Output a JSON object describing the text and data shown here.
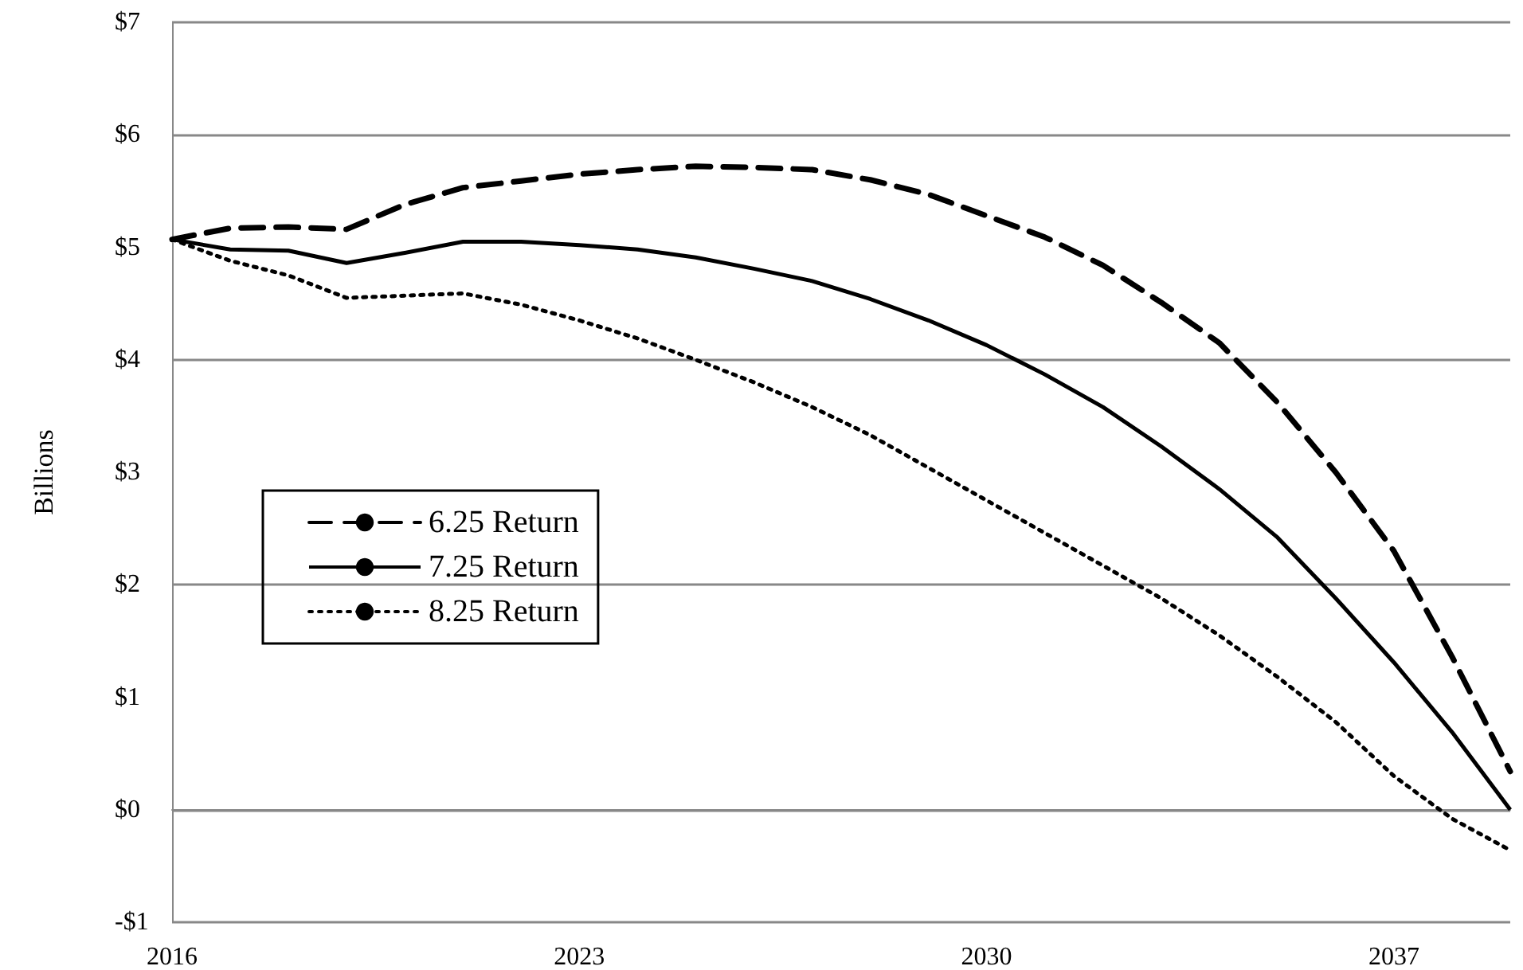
{
  "chart_data": {
    "type": "line",
    "ylabel": "Billions",
    "categories": [
      "2016",
      null,
      null,
      null,
      null,
      null,
      null,
      "2023",
      null,
      null,
      null,
      null,
      null,
      null,
      "2030",
      null,
      null,
      null,
      null,
      null,
      null,
      "2037",
      null,
      null
    ],
    "series": [
      {
        "name": "6.25 Return",
        "color": "#000000",
        "line_style": "dashed",
        "values": [
          5.07,
          5.17,
          5.18,
          5.16,
          5.38,
          5.53,
          5.59,
          5.65,
          5.69,
          5.72,
          5.71,
          5.69,
          5.6,
          5.47,
          5.28,
          5.09,
          4.84,
          4.51,
          4.15,
          3.62,
          3.0,
          2.3,
          1.36,
          0.34
        ]
      },
      {
        "name": "7.25 Return",
        "color": "#000000",
        "line_style": "solid",
        "values": [
          5.07,
          4.98,
          4.97,
          4.86,
          4.95,
          5.05,
          5.05,
          5.02,
          4.98,
          4.91,
          4.81,
          4.7,
          4.54,
          4.35,
          4.13,
          3.87,
          3.58,
          3.23,
          2.85,
          2.42,
          1.88,
          1.31,
          0.69,
          0.0
        ]
      },
      {
        "name": "8.25 Return",
        "color": "#000000",
        "line_style": "dotted",
        "values": [
          5.07,
          4.88,
          4.75,
          4.55,
          4.57,
          4.59,
          4.49,
          4.35,
          4.19,
          4.0,
          3.8,
          3.58,
          3.33,
          3.04,
          2.75,
          2.46,
          2.17,
          1.88,
          1.55,
          1.18,
          0.78,
          0.3,
          -0.08,
          -0.36
        ]
      }
    ],
    "ylim": [
      -1,
      7
    ],
    "yticks": [
      {
        "value": -1,
        "label": "-$1"
      },
      {
        "value": 0,
        "label": "$0"
      },
      {
        "value": 1,
        "label": "$1"
      },
      {
        "value": 2,
        "label": "$2"
      },
      {
        "value": 3,
        "label": "$3"
      },
      {
        "value": 4,
        "label": "$4"
      },
      {
        "value": 5,
        "label": "$5"
      },
      {
        "value": 6,
        "label": "$6"
      },
      {
        "value": 7,
        "label": "$7"
      }
    ],
    "grid": "y",
    "legend": "left",
    "marker": "none"
  }
}
